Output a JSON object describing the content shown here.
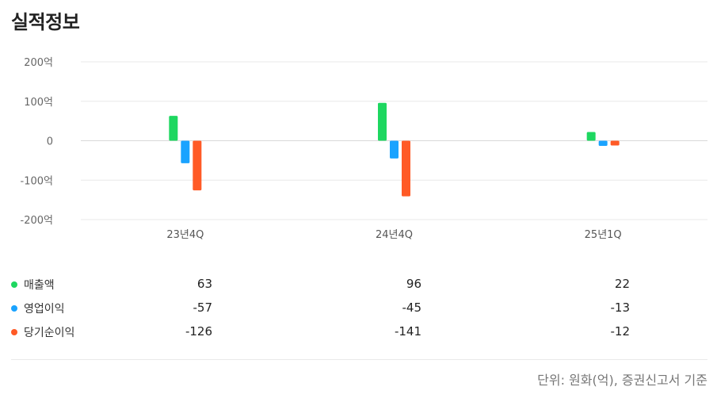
{
  "title": "실적정보",
  "footnote": "단위: 원화(억), 증권신고서 기준",
  "colors": {
    "sales": "#1ed760",
    "op": "#1aa3ff",
    "net": "#ff5a26",
    "grid": "#e8e8e8",
    "zero": "#d9d9d9"
  },
  "chart_data": {
    "type": "bar",
    "categories": [
      "23년4Q",
      "24년4Q",
      "25년1Q"
    ],
    "series": [
      {
        "name": "매출액",
        "values": [
          63,
          96,
          22
        ]
      },
      {
        "name": "영업이익",
        "values": [
          -57,
          -45,
          -13
        ]
      },
      {
        "name": "당기순이익",
        "values": [
          -126,
          -141,
          -12
        ]
      }
    ],
    "yticks": [
      "200억",
      "100억",
      "0",
      "-100억",
      "-200억"
    ],
    "ytick_values": [
      200,
      100,
      0,
      -100,
      -200
    ],
    "ylim": [
      -200,
      200
    ],
    "grid": true,
    "legend_position": "bottom"
  },
  "table": {
    "rows": [
      {
        "name": "매출액",
        "values": [
          "63",
          "96",
          "22"
        ]
      },
      {
        "name": "영업이익",
        "values": [
          "-57",
          "-45",
          "-13"
        ]
      },
      {
        "name": "당기순이익",
        "values": [
          "-126",
          "-141",
          "-12"
        ]
      }
    ]
  }
}
